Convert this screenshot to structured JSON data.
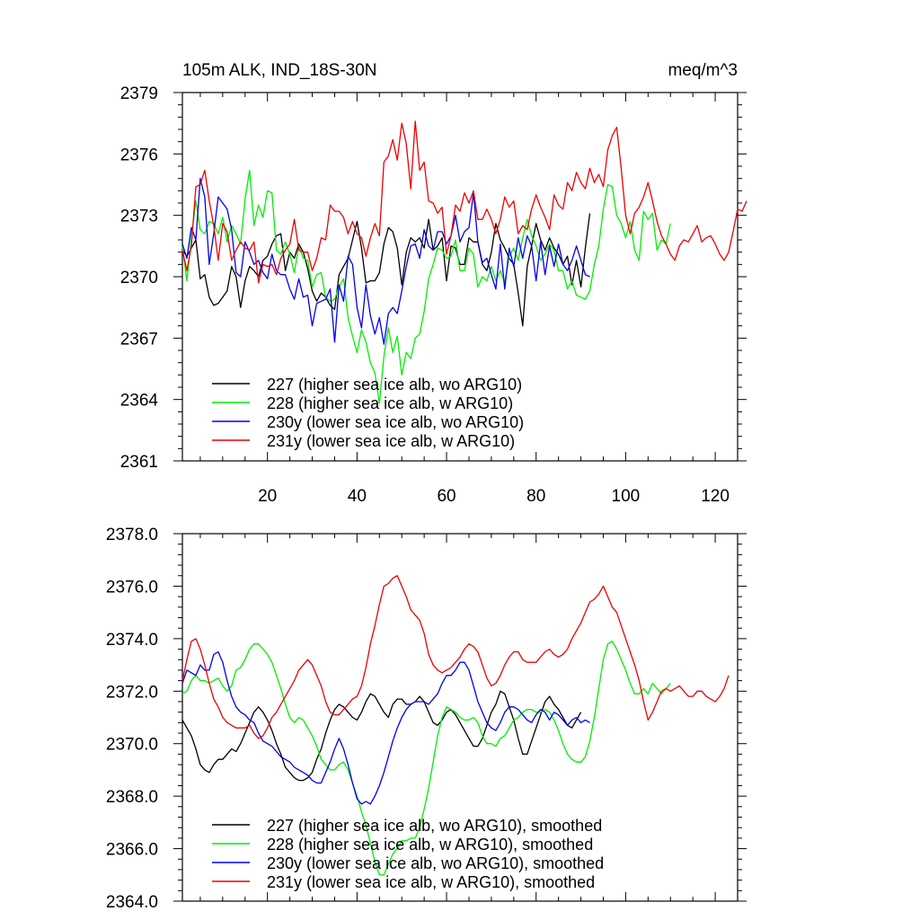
{
  "chart_data": [
    {
      "type": "line",
      "title": "105m ALK, IND_18S-30N",
      "units": "meq/m^3",
      "xlabel": "",
      "ylabel": "",
      "xlim": [
        1,
        125
      ],
      "ylim": [
        2361,
        2379
      ],
      "xticks": [
        20,
        40,
        60,
        80,
        100,
        120
      ],
      "xtick_labels": [
        "20",
        "40",
        "60",
        "80",
        "100",
        "120"
      ],
      "yticks": [
        2361,
        2364,
        2367,
        2370,
        2373,
        2376,
        2379
      ],
      "ytick_labels": [
        "2361",
        "2364",
        "2367",
        "2370",
        "2373",
        "2376",
        "2379"
      ],
      "legend": "bottom-left",
      "series": [
        {
          "name": "227 (higher sea ice alb, wo ARG10)",
          "color": "#000000",
          "x_start": 1,
          "values": [
            2371.3,
            2371.0,
            2371.4,
            2371.8,
            2369.9,
            2370.1,
            2369.0,
            2368.6,
            2368.7,
            2369.0,
            2369.3,
            2370.5,
            2370.0,
            2368.5,
            2369.8,
            2370.5,
            2370.3,
            2370.0,
            2370.8,
            2371.0,
            2371.6,
            2372.0,
            2372.1,
            2370.3,
            2371.2,
            2370.9,
            2371.6,
            2371.2,
            2370.4,
            2369.3,
            2368.8,
            2369.2,
            2369.0,
            2368.6,
            2368.4,
            2370.1,
            2370.5,
            2370.9,
            2371.8,
            2372.7,
            2371.4,
            2369.7,
            2369.8,
            2369.8,
            2370.2,
            2371.6,
            2372.4,
            2372.2,
            2371.4,
            2369.6,
            2371.2,
            2371.9,
            2371.7,
            2371.9,
            2371.4,
            2372.8,
            2371.3,
            2371.5,
            2371.9,
            2369.8,
            2371.5,
            2371.4,
            2370.6,
            2370.6,
            2371.9,
            2371.7,
            2371.7,
            2370.6,
            2370.3,
            2371.2,
            2372.6,
            2371.8,
            2371.4,
            2370.9,
            2370.6,
            2369.2,
            2367.6,
            2370.5,
            2371.5,
            2372.6,
            2371.8,
            2371.3,
            2371.9,
            2371.4,
            2371.1,
            2370.6,
            2371.0,
            2369.6,
            2370.8,
            2369.5,
            2371.4,
            2373.1
          ],
          "smoothed": false
        },
        {
          "name": "228 (higher sea ice alb, w ARG10)",
          "color": "#00ee00",
          "x_start": 1,
          "values": [
            2371.5,
            2369.8,
            2371.9,
            2373.7,
            2372.3,
            2372.1,
            2372.7,
            2372.6,
            2372.1,
            2372.9,
            2371.7,
            2372.5,
            2372.1,
            2371.6,
            2373.8,
            2375.2,
            2372.5,
            2373.5,
            2372.9,
            2374.2,
            2374.1,
            2371.3,
            2371.1,
            2371.7,
            2371.1,
            2370.2,
            2371.5,
            2370.9,
            2370.8,
            2369.5,
            2370.1,
            2370.2,
            2369.0,
            2368.8,
            2368.9,
            2369.5,
            2369.9,
            2368.0,
            2367.1,
            2366.3,
            2367.4,
            2366.8,
            2365.8,
            2365.3,
            2363.8,
            2366.1,
            2367.5,
            2366.3,
            2367.1,
            2365.2,
            2366.3,
            2366.0,
            2367.0,
            2367.2,
            2368.3,
            2369.9,
            2370.6,
            2371.4,
            2371.3,
            2370.9,
            2371.0,
            2371.8,
            2370.3,
            2370.3,
            2371.4,
            2371.1,
            2369.5,
            2370.0,
            2369.8,
            2370.5,
            2369.8,
            2370.3,
            2369.7,
            2371.0,
            2371.4,
            2370.8,
            2371.9,
            2372.8,
            2372.0,
            2371.5,
            2370.8,
            2371.1,
            2371.6,
            2371.3,
            2370.3,
            2370.3,
            2369.4,
            2369.8,
            2369.1,
            2369.0,
            2368.9,
            2369.3,
            2370.6,
            2371.5,
            2373.3,
            2374.5,
            2374.4,
            2373.0,
            2372.6,
            2371.9,
            2372.7,
            2371.3,
            2370.8,
            2373.2,
            2372.8,
            2373.1,
            2371.3,
            2371.8,
            2371.6,
            2372.6
          ],
          "smoothed": false
        },
        {
          "name": "230y (lower sea ice alb, wo ARG10)",
          "color": "#0000ee",
          "x_start": 1,
          "values": [
            2371.6,
            2370.9,
            2372.4,
            2371.8,
            2374.8,
            2373.9,
            2370.6,
            2372.1,
            2373.9,
            2373.6,
            2373.3,
            2372.3,
            2370.2,
            2370.0,
            2371.7,
            2371.2,
            2370.6,
            2370.8,
            2370.2,
            2369.9,
            2371.1,
            2370.3,
            2370.1,
            2370.1,
            2369.4,
            2368.9,
            2369.9,
            2369.0,
            2369.1,
            2367.6,
            2368.7,
            2368.8,
            2368.9,
            2369.4,
            2366.8,
            2369.6,
            2368.8,
            2371.0,
            2370.6,
            2368.5,
            2367.5,
            2369.6,
            2368.1,
            2367.2,
            2368.0,
            2366.7,
            2368.2,
            2368.5,
            2368.2,
            2369.3,
            2370.5,
            2371.5,
            2371.6,
            2370.9,
            2372.3,
            2371.5,
            2371.3,
            2372.2,
            2372.2,
            2371.6,
            2372.0,
            2373.0,
            2371.7,
            2372.2,
            2372.4,
            2374.1,
            2371.7,
            2370.7,
            2370.9,
            2370.1,
            2369.4,
            2371.6,
            2369.4,
            2371.4,
            2370.5,
            2371.9,
            2370.9,
            2372.0,
            2371.5,
            2369.8,
            2371.7,
            2370.1,
            2371.5,
            2370.5,
            2371.6,
            2370.6,
            2370.3,
            2370.8,
            2371.5,
            2370.8,
            2370.1,
            2370.0
          ],
          "smoothed": false
        },
        {
          "name": "231y (lower sea ice alb, w ARG10)",
          "color": "#ee0000",
          "x_start": 1,
          "values": [
            2371.3,
            2370.3,
            2371.5,
            2374.4,
            2374.5,
            2375.2,
            2373.7,
            2372.5,
            2370.8,
            2372.6,
            2372.2,
            2370.8,
            2371.3,
            2371.7,
            2371.4,
            2371.3,
            2371.7,
            2369.7,
            2370.6,
            2370.5,
            2370.6,
            2370.1,
            2370.9,
            2371.3,
            2371.6,
            2372.8,
            2371.3,
            2371.2,
            2371.2,
            2370.3,
            2370.9,
            2371.9,
            2371.8,
            2373.5,
            2373.2,
            2373.2,
            2372.9,
            2372.1,
            2372.7,
            2372.1,
            2371.9,
            2371.0,
            2371.9,
            2372.6,
            2372.0,
            2375.6,
            2375.9,
            2376.7,
            2375.7,
            2377.5,
            2376.5,
            2374.3,
            2377.6,
            2375.2,
            2375.6,
            2373.7,
            2373.6,
            2373.1,
            2373.4,
            2371.1,
            2372.0,
            2373.5,
            2373.2,
            2374.1,
            2373.6,
            2374.2,
            2372.8,
            2372.8,
            2373.3,
            2372.8,
            2372.1,
            2372.8,
            2373.9,
            2373.4,
            2373.7,
            2372.1,
            2372.5,
            2372.3,
            2373.3,
            2374.0,
            2373.4,
            2372.9,
            2372.3,
            2374.0,
            2373.5,
            2373.3,
            2374.6,
            2374.2,
            2375.1,
            2374.6,
            2374.3,
            2375.3,
            2374.6,
            2375.0,
            2374.4,
            2376.2,
            2376.9,
            2377.3,
            2375.3,
            2373.0,
            2372.1,
            2373.1,
            2373.4,
            2373.9,
            2374.6,
            2373.7,
            2372.7,
            2372.0,
            2371.6,
            2371.1,
            2370.8,
            2371.5,
            2371.8,
            2371.7,
            2372.1,
            2372.5,
            2371.7,
            2371.9,
            2372.0,
            2371.6,
            2371.1,
            2370.8,
            2371.2,
            2372.2,
            2373.3,
            2373.2,
            2373.7
          ],
          "smoothed": false
        }
      ]
    },
    {
      "type": "line",
      "title": "",
      "xlabel": "",
      "ylabel": "",
      "xlim": [
        1,
        125
      ],
      "ylim": [
        2364.0,
        2378.0
      ],
      "xticks": [
        20,
        40,
        60,
        80,
        100,
        120
      ],
      "xtick_labels": [],
      "yticks": [
        2364,
        2366,
        2368,
        2370,
        2372,
        2374,
        2376,
        2378
      ],
      "ytick_labels": [
        "2364.0",
        "2366.0",
        "2368.0",
        "2370.0",
        "2372.0",
        "2374.0",
        "2376.0",
        "2378.0"
      ],
      "legend": "bottom-left",
      "series": [
        {
          "name": "227 (higher sea ice alb, wo ARG10), smoothed",
          "color": "#000000",
          "x_start": 1,
          "smoothed": true,
          "values": [
            2370.9,
            2370.6,
            2370.3,
            2369.8,
            2369.2,
            2369.0,
            2368.9,
            2369.2,
            2369.4,
            2369.4,
            2369.6,
            2369.8,
            2369.7,
            2370.0,
            2370.4,
            2370.8,
            2371.2,
            2371.4,
            2371.2,
            2370.9,
            2370.5,
            2370.0,
            2369.6,
            2369.1,
            2368.9,
            2368.7,
            2368.6,
            2368.6,
            2368.7,
            2368.9,
            2369.4,
            2369.8,
            2370.4,
            2370.9,
            2371.3,
            2371.5,
            2371.4,
            2371.2,
            2371.0,
            2370.9,
            2371.2,
            2371.6,
            2371.9,
            2371.8,
            2371.5,
            2371.2,
            2371.0,
            2371.5,
            2371.7,
            2371.7,
            2371.5,
            2371.5,
            2371.6,
            2371.8,
            2371.6,
            2371.2,
            2370.8,
            2370.7,
            2370.9,
            2371.2,
            2371.3,
            2371.1,
            2370.8,
            2370.5,
            2370.2,
            2369.9,
            2369.9,
            2370.2,
            2370.7,
            2371.2,
            2371.5,
            2372.0,
            2371.9,
            2371.4,
            2370.9,
            2370.2,
            2369.6,
            2369.6,
            2370.1,
            2370.6,
            2371.1,
            2371.6,
            2371.8,
            2371.5,
            2371.3,
            2371.0,
            2370.7,
            2370.6,
            2370.9,
            2371.2
          ]
        },
        {
          "name": "228 (higher sea ice alb, w ARG10), smoothed",
          "color": "#00ee00",
          "x_start": 1,
          "smoothed": true,
          "values": [
            2371.9,
            2372.0,
            2372.4,
            2372.6,
            2372.4,
            2372.4,
            2372.3,
            2372.4,
            2372.5,
            2372.2,
            2372.0,
            2372.2,
            2372.8,
            2372.9,
            2373.2,
            2373.6,
            2373.8,
            2373.8,
            2373.6,
            2373.4,
            2373.1,
            2372.6,
            2372.1,
            2371.5,
            2371.0,
            2370.8,
            2371.0,
            2370.9,
            2370.6,
            2370.3,
            2369.9,
            2369.4,
            2369.2,
            2369.0,
            2369.0,
            2369.2,
            2369.3,
            2369.0,
            2368.5,
            2368.0,
            2367.4,
            2366.9,
            2366.2,
            2365.5,
            2365.0,
            2365.0,
            2365.4,
            2365.8,
            2366.0,
            2366.3,
            2366.3,
            2366.4,
            2366.4,
            2366.8,
            2367.5,
            2368.3,
            2369.3,
            2370.3,
            2371.0,
            2371.4,
            2371.3,
            2371.2,
            2371.0,
            2370.9,
            2370.9,
            2371.0,
            2370.8,
            2370.3,
            2370.0,
            2370.0,
            2369.9,
            2370.2,
            2370.3,
            2370.6,
            2370.9,
            2371.0,
            2371.2,
            2371.3,
            2371.3,
            2371.2,
            2371.2,
            2371.3,
            2371.2,
            2370.9,
            2370.5,
            2370.0,
            2369.6,
            2369.4,
            2369.3,
            2369.3,
            2369.5,
            2370.1,
            2371.0,
            2372.1,
            2373.2,
            2373.8,
            2373.9,
            2373.6,
            2373.2,
            2372.8,
            2372.3,
            2371.9,
            2371.9,
            2372.1,
            2371.9,
            2372.3,
            2372.1,
            2371.9,
            2372.1,
            2372.3
          ]
        },
        {
          "name": "230y (lower sea ice alb, wo ARG10), smoothed",
          "color": "#0000ee",
          "x_start": 1,
          "smoothed": true,
          "values": [
            2372.3,
            2372.8,
            2372.7,
            2372.6,
            2373.0,
            2372.8,
            2372.8,
            2373.4,
            2373.5,
            2373.1,
            2372.4,
            2371.8,
            2371.4,
            2371.2,
            2371.1,
            2370.9,
            2370.8,
            2370.4,
            2370.1,
            2370.0,
            2369.9,
            2369.7,
            2369.5,
            2369.4,
            2369.3,
            2369.1,
            2369.0,
            2368.9,
            2368.8,
            2368.6,
            2368.5,
            2368.5,
            2368.9,
            2369.3,
            2369.8,
            2370.2,
            2369.8,
            2369.2,
            2368.5,
            2367.9,
            2367.7,
            2367.8,
            2367.7,
            2368.0,
            2368.4,
            2368.9,
            2369.5,
            2370.1,
            2370.6,
            2371.0,
            2371.3,
            2371.5,
            2371.6,
            2371.6,
            2371.6,
            2371.5,
            2371.7,
            2371.9,
            2372.3,
            2372.6,
            2372.6,
            2372.8,
            2373.1,
            2373.1,
            2372.8,
            2372.2,
            2371.6,
            2371.2,
            2370.8,
            2370.6,
            2370.5,
            2370.8,
            2371.2,
            2371.4,
            2371.4,
            2371.3,
            2371.1,
            2370.9,
            2370.8,
            2371.1,
            2371.3,
            2371.2,
            2370.9,
            2371.2,
            2371.1,
            2370.9,
            2370.7,
            2370.9,
            2371.0,
            2370.8,
            2370.9,
            2370.8
          ]
        },
        {
          "name": "231y (lower sea ice alb, w ARG10), smoothed",
          "color": "#ee0000",
          "x_start": 1,
          "smoothed": true,
          "values": [
            2372.4,
            2373.2,
            2373.9,
            2374.0,
            2373.6,
            2373.0,
            2372.3,
            2371.7,
            2371.4,
            2371.0,
            2370.8,
            2370.7,
            2370.6,
            2370.6,
            2370.6,
            2370.7,
            2370.4,
            2370.2,
            2370.3,
            2370.6,
            2371.0,
            2371.2,
            2371.5,
            2371.8,
            2372.1,
            2372.4,
            2372.8,
            2373.0,
            2373.2,
            2373.0,
            2372.6,
            2372.2,
            2371.6,
            2371.2,
            2371.1,
            2371.1,
            2371.3,
            2371.5,
            2371.7,
            2371.8,
            2372.2,
            2372.9,
            2373.8,
            2374.5,
            2375.3,
            2376.0,
            2376.1,
            2376.3,
            2376.4,
            2376.0,
            2375.6,
            2375.1,
            2374.9,
            2374.7,
            2374.2,
            2373.4,
            2373.0,
            2372.8,
            2372.7,
            2372.8,
            2372.9,
            2373.1,
            2373.3,
            2373.6,
            2373.8,
            2373.7,
            2373.5,
            2373.0,
            2372.5,
            2372.2,
            2372.3,
            2372.6,
            2373.0,
            2373.3,
            2373.5,
            2373.5,
            2373.2,
            2373.1,
            2373.1,
            2373.1,
            2373.3,
            2373.5,
            2373.6,
            2373.4,
            2373.3,
            2373.4,
            2373.6,
            2374.0,
            2374.3,
            2374.6,
            2375.0,
            2375.4,
            2375.5,
            2375.7,
            2376.0,
            2375.6,
            2375.2,
            2375.0,
            2374.5,
            2374.0,
            2373.5,
            2373.0,
            2372.4,
            2371.6,
            2370.9,
            2371.2,
            2371.6,
            2372.0,
            2372.1,
            2372.0,
            2372.1,
            2372.2,
            2372.0,
            2371.8,
            2371.8,
            2372.0,
            2372.0,
            2371.8,
            2371.7,
            2371.6,
            2371.8,
            2372.1,
            2372.6
          ]
        }
      ]
    }
  ]
}
